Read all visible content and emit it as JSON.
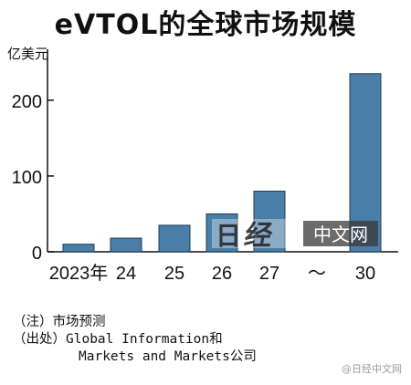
{
  "title": "eVTOL的全球市场规模",
  "chart_data": {
    "type": "bar",
    "unit_label": "亿美元",
    "categories": [
      "2023年",
      "24",
      "25",
      "26",
      "27",
      "30"
    ],
    "values": [
      10,
      18,
      35,
      50,
      80,
      235
    ],
    "ylim": [
      0,
      260
    ],
    "yticks": [
      0,
      100,
      200
    ],
    "axis_break_label": "～",
    "bar_color": "#4a7ea8",
    "bar_stroke": "#1d3c57",
    "grid": false
  },
  "notes": {
    "note_line": "（注）市场预测",
    "source_prefix": "（出处）",
    "source_line1": "Global Information和",
    "source_line2": "Markets and Markets公司"
  },
  "watermark": {
    "main": "中文网",
    "small": "@日经中文网"
  }
}
